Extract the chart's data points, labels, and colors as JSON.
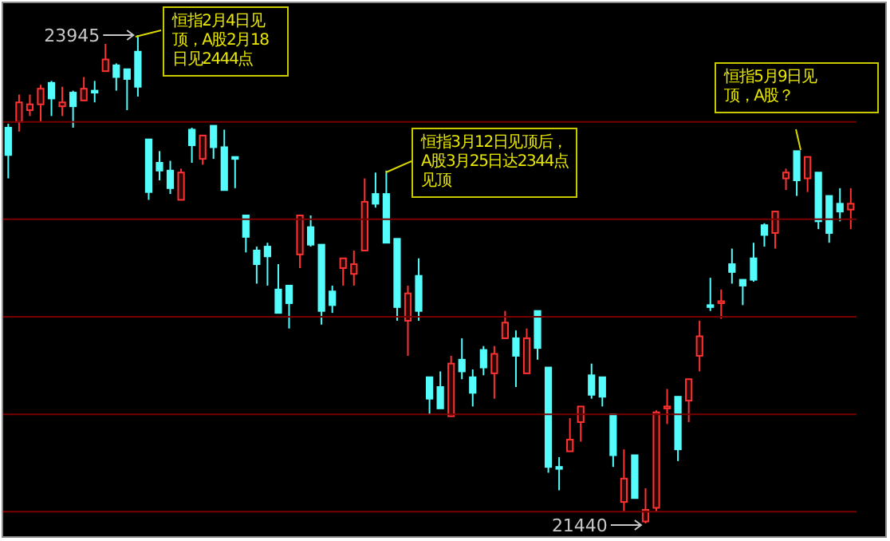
{
  "chart_data": {
    "type": "candlestick",
    "categories": [
      null,
      null,
      null,
      null,
      null,
      null,
      null,
      null,
      null,
      null,
      null,
      null,
      null,
      null,
      null,
      null,
      null,
      null,
      null,
      null,
      null,
      null,
      null,
      null,
      null,
      null,
      null,
      null,
      null,
      null,
      null,
      null,
      null,
      null,
      null,
      null,
      null,
      null,
      null,
      null,
      null,
      null,
      null,
      null,
      null,
      null,
      null,
      null,
      null,
      null,
      null,
      null,
      null,
      null,
      null,
      null,
      null,
      null,
      null,
      null,
      null,
      null,
      null,
      null,
      null,
      null,
      null,
      null,
      null,
      null,
      null,
      null,
      null,
      null,
      null,
      null,
      null,
      null,
      null
    ],
    "ohlc": [
      [
        23470,
        23490,
        23210,
        23330
      ],
      [
        23500,
        23640,
        23450,
        23600
      ],
      [
        23560,
        23640,
        23530,
        23590
      ],
      [
        23590,
        23690,
        23500,
        23670
      ],
      [
        23700,
        23710,
        23530,
        23620
      ],
      [
        23580,
        23680,
        23530,
        23600
      ],
      [
        23650,
        23660,
        23470,
        23580
      ],
      [
        23610,
        23730,
        23610,
        23670
      ],
      [
        23660,
        23710,
        23600,
        23650
      ],
      [
        23760,
        23900,
        23760,
        23820
      ],
      [
        23790,
        23800,
        23660,
        23730
      ],
      [
        23770,
        23770,
        23560,
        23720
      ],
      [
        23860,
        23945,
        23630,
        23680
      ],
      [
        23410,
        23410,
        23100,
        23140
      ],
      [
        23290,
        23350,
        23200,
        23250
      ],
      [
        23250,
        23300,
        23130,
        23160
      ],
      [
        23100,
        23260,
        23100,
        23240
      ],
      [
        23460,
        23470,
        23290,
        23380
      ],
      [
        23310,
        23430,
        23280,
        23430
      ],
      [
        23480,
        23480,
        23310,
        23370
      ],
      [
        23370,
        23460,
        23150,
        23150
      ],
      [
        23320,
        23320,
        23160,
        23310
      ],
      [
        23020,
        23020,
        22830,
        22910
      ],
      [
        22840,
        22860,
        22670,
        22770
      ],
      [
        22860,
        22880,
        22660,
        22810
      ],
      [
        22640,
        22770,
        22520,
        22520
      ],
      [
        22660,
        22660,
        22440,
        22570
      ],
      [
        22820,
        23020,
        22750,
        23020
      ],
      [
        22960,
        23020,
        22860,
        22870
      ],
      [
        22870,
        22870,
        22460,
        22530
      ],
      [
        22630,
        22660,
        22520,
        22560
      ],
      [
        22750,
        22800,
        22660,
        22800
      ],
      [
        22720,
        22840,
        22660,
        22770
      ],
      [
        22840,
        23210,
        22840,
        23090
      ],
      [
        23130,
        23240,
        23060,
        23080
      ],
      [
        23130,
        23250,
        22880,
        22880
      ],
      [
        22900,
        22900,
        22480,
        22550
      ],
      [
        22480,
        22660,
        22300,
        22620
      ],
      [
        22710,
        22800,
        22480,
        22530
      ],
      [
        22190,
        22190,
        22000,
        22080
      ],
      [
        22140,
        22220,
        22030,
        22030
      ],
      [
        21990,
        22300,
        21990,
        22260
      ],
      [
        22280,
        22390,
        22180,
        22220
      ],
      [
        22190,
        22230,
        22040,
        22110
      ],
      [
        22330,
        22350,
        22200,
        22240
      ],
      [
        22210,
        22350,
        22080,
        22310
      ],
      [
        22390,
        22530,
        22390,
        22470
      ],
      [
        22390,
        22430,
        22140,
        22300
      ],
      [
        22210,
        22440,
        22210,
        22390
      ],
      [
        22530,
        22530,
        22280,
        22340
      ],
      [
        22240,
        22240,
        21700,
        21730
      ],
      [
        21730,
        21780,
        21610,
        21720
      ],
      [
        21810,
        21980,
        21810,
        21870
      ],
      [
        21960,
        22040,
        21860,
        22040
      ],
      [
        22200,
        22260,
        22080,
        22100
      ],
      [
        22190,
        22190,
        22040,
        22090
      ],
      [
        22000,
        22000,
        21730,
        21790
      ],
      [
        21550,
        21820,
        21500,
        21670
      ],
      [
        21790,
        21790,
        21570,
        21570
      ],
      [
        21450,
        21620,
        21440,
        21510
      ],
      [
        21520,
        22020,
        21500,
        22010
      ],
      [
        22030,
        22130,
        21950,
        22040
      ],
      [
        22090,
        22090,
        21760,
        21820
      ],
      [
        22070,
        22180,
        21960,
        22180
      ],
      [
        22300,
        22480,
        22220,
        22400
      ],
      [
        22560,
        22700,
        22530,
        22550
      ],
      [
        22570,
        22640,
        22490,
        22580
      ],
      [
        22770,
        22850,
        22670,
        22730
      ],
      [
        22690,
        22690,
        22560,
        22660
      ],
      [
        22800,
        22880,
        22680,
        22690
      ],
      [
        22970,
        22980,
        22860,
        22920
      ],
      [
        22930,
        23040,
        22850,
        23040
      ],
      [
        23210,
        23260,
        23150,
        23240
      ],
      [
        23350,
        23350,
        23120,
        23200
      ],
      [
        23210,
        23320,
        23140,
        23320
      ],
      [
        23240,
        23240,
        22950,
        22990
      ],
      [
        23120,
        23120,
        22880,
        22930
      ],
      [
        23080,
        23160,
        22990,
        23040
      ],
      [
        23050,
        23160,
        22950,
        23080
      ]
    ],
    "colors": [
      "#54fcfc",
      "#ff3232",
      "#ff3232",
      "#ff3232",
      "#54fcfc",
      "#ff3232",
      "#54fcfc",
      "#ff3232",
      "#54fcfc",
      "#ff3232",
      "#54fcfc",
      "#54fcfc",
      "#54fcfc",
      "#54fcfc",
      "#54fcfc",
      "#54fcfc",
      "#ff3232",
      "#54fcfc",
      "#ff3232",
      "#54fcfc",
      "#54fcfc",
      "#54fcfc",
      "#54fcfc",
      "#54fcfc",
      "#54fcfc",
      "#54fcfc",
      "#54fcfc",
      "#ff3232",
      "#54fcfc",
      "#54fcfc",
      "#54fcfc",
      "#ff3232",
      "#ff3232",
      "#ff3232",
      "#54fcfc",
      "#54fcfc",
      "#54fcfc",
      "#ff3232",
      "#54fcfc",
      "#54fcfc",
      "#54fcfc",
      "#ff3232",
      "#54fcfc",
      "#54fcfc",
      "#54fcfc",
      "#ff3232",
      "#ff3232",
      "#54fcfc",
      "#ff3232",
      "#54fcfc",
      "#54fcfc",
      "#54fcfc",
      "#ff3232",
      "#ff3232",
      "#54fcfc",
      "#54fcfc",
      "#54fcfc",
      "#ff3232",
      "#54fcfc",
      "#ff3232",
      "#ff3232",
      "#ff3232",
      "#54fcfc",
      "#ff3232",
      "#ff3232",
      "#54fcfc",
      "#ff3232",
      "#54fcfc",
      "#54fcfc",
      "#54fcfc",
      "#54fcfc",
      "#ff3232",
      "#ff3232",
      "#54fcfc",
      "#ff3232",
      "#54fcfc",
      "#54fcfc",
      "#54fcfc",
      "#ff3232"
    ],
    "yticks": [
      21500,
      22000,
      22500,
      23000,
      23500
    ],
    "grid": "y",
    "tick_labels": false,
    "annotations": [
      "23945",
      "21440",
      "恒指2月4日见顶，A股2月18日见2444点",
      "恒指3月12日见顶后，A股3月25日达2344点见顶",
      "恒指5月9日见顶，A股？"
    ]
  }
}
